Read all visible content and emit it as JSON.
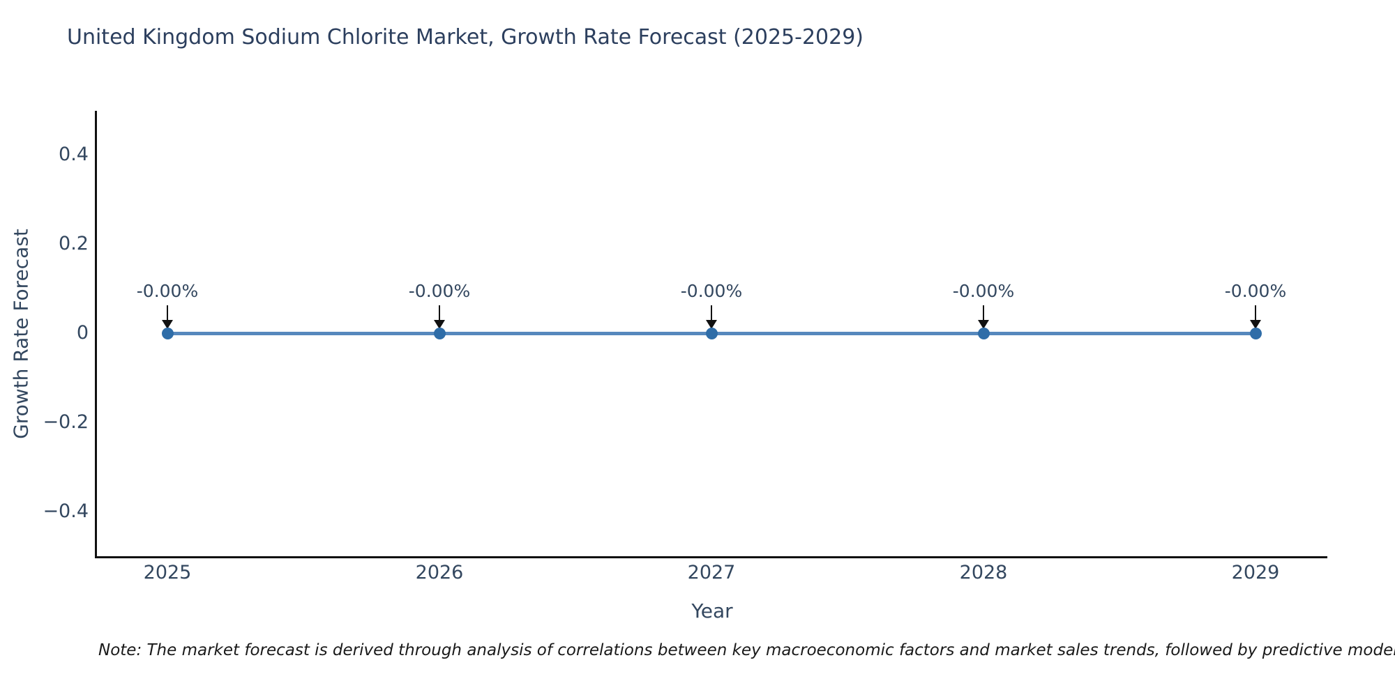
{
  "chart_data": {
    "type": "line",
    "title": "United Kingdom Sodium Chlorite Market, Growth Rate Forecast (2025-2029)",
    "xlabel": "Year",
    "ylabel": "Growth Rate Forecast",
    "x": [
      2025,
      2026,
      2027,
      2028,
      2029
    ],
    "x_tick_labels": [
      "2025",
      "2026",
      "2027",
      "2028",
      "2029"
    ],
    "series": [
      {
        "name": "Growth Rate Forecast",
        "values": [
          0,
          0,
          0,
          0,
          0
        ],
        "point_annotations": [
          "-0.00%",
          "-0.00%",
          "-0.00%",
          "-0.00%",
          "-0.00%"
        ]
      }
    ],
    "y_ticks": [
      {
        "label": "0.4",
        "value": 0.4
      },
      {
        "label": "0.2",
        "value": 0.2
      },
      {
        "label": "0",
        "value": 0
      },
      {
        "label": "−0.2",
        "value": -0.2
      },
      {
        "label": "−0.4",
        "value": -0.4
      }
    ],
    "ylim": [
      -0.5,
      0.5
    ],
    "grid": false,
    "legend": false,
    "colors": {
      "line": "#5688bd",
      "marker": "#2f6da8",
      "axis": "#111111",
      "title_text": "#2c3f5e",
      "tick_text": "#33475f",
      "arrow": "#111111"
    },
    "note": "Note: The market forecast is derived through analysis of correlations between key macroeconomic factors and market sales trends, followed by predictive modeling to project future sa"
  }
}
